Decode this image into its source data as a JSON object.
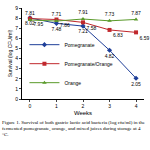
{
  "chart_data": {
    "type": "line",
    "caption": "Figure 1. Survival of both gastric lactic acid bacteria (log cfu/ml) in the fermented pomegranate, orange, and mixed juices during storage at 4 °C.",
    "x_label": "Weeks",
    "y_label": "Survival (log CFU/ml)",
    "categories": [
      "0",
      "1",
      "2",
      "3",
      "4"
    ],
    "ylim": [
      0,
      9
    ],
    "yticks": [
      0,
      1,
      2,
      3,
      4,
      5,
      6,
      7,
      8,
      9
    ],
    "legend": "bottom left",
    "data_labels": true,
    "series": [
      {
        "name": "Pomegranate",
        "color": "#1f3f99",
        "marker": "diamond",
        "values": [
          8.02,
          7.48,
          7.21,
          4.82,
          2.05
        ],
        "value_labels": [
          "8.02",
          "7.48",
          "7.21",
          "4.82",
          "2.05"
        ]
      },
      {
        "name": "Pomegranate/Orange",
        "color": "#c0282d",
        "marker": "square",
        "values": [
          7.95,
          7.86,
          7.58,
          6.83,
          6.59
        ],
        "value_labels": [
          "7.95",
          "7.86",
          "7.58",
          "6.83",
          "6.59"
        ]
      },
      {
        "name": "Orange",
        "color": "#5a9a2a",
        "marker": "triangle-up",
        "values": [
          7.81,
          7.71,
          7.91,
          7.73,
          7.87
        ],
        "value_labels": [
          "7.81",
          "7.71",
          "7.91",
          "7.73",
          "7.87"
        ]
      }
    ]
  }
}
